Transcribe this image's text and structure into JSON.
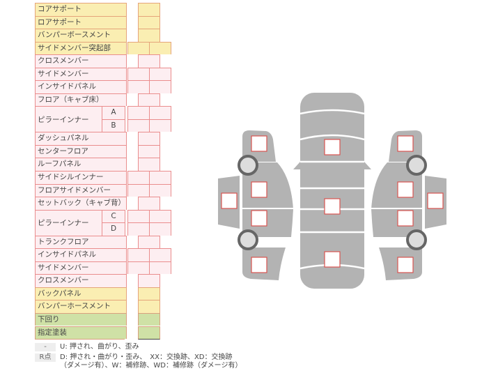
{
  "rows": [
    {
      "label": "コアサポート",
      "color": "yellow",
      "cells": 1
    },
    {
      "label": "ロアサポート",
      "color": "yellow",
      "cells": 1
    },
    {
      "label": "バンパーボースメント",
      "color": "yellow",
      "cells": 1
    },
    {
      "label": "サイドメンバー突起部",
      "color": "yellow",
      "cells": 2
    },
    {
      "label": "クロスメンバー",
      "color": "pink",
      "cells": 1
    },
    {
      "label": "サイドメンバー",
      "color": "pink",
      "cells": 2
    },
    {
      "label": "インサイドパネル",
      "color": "pink",
      "cells": 2
    },
    {
      "label": "フロア（キャブ床）",
      "color": "pink",
      "cells": 1
    },
    {
      "label": "ピラーインナー",
      "sub": "A",
      "color": "pink",
      "cells": 2
    },
    {
      "label": "",
      "sub": "B",
      "color": "pink",
      "cells": 2
    },
    {
      "label": "ダッシュパネル",
      "color": "pink",
      "cells": 1
    },
    {
      "label": "センターフロア",
      "color": "pink",
      "cells": 1
    },
    {
      "label": "ルーフパネル",
      "color": "pink",
      "cells": 1
    },
    {
      "label": "サイドシルインナー",
      "color": "pink",
      "cells": 2
    },
    {
      "label": "フロアサイドメンバー",
      "color": "pink",
      "cells": 2
    },
    {
      "label": "セットバック（キャブ背）",
      "color": "pink",
      "cells": 1
    },
    {
      "label": "ピラーインナー",
      "sub": "C",
      "color": "pink",
      "cells": 2
    },
    {
      "label": "",
      "sub": "D",
      "color": "pink",
      "cells": 2
    },
    {
      "label": "トランクフロア",
      "color": "pink",
      "cells": 1
    },
    {
      "label": "インサイドパネル",
      "color": "pink",
      "cells": 2
    },
    {
      "label": "サイドメンバー",
      "color": "pink",
      "cells": 2
    },
    {
      "label": "クロスメンバー",
      "color": "pink",
      "cells": 1
    },
    {
      "label": "バックパネル",
      "color": "yellow",
      "cells": 1
    },
    {
      "label": "バンパーホースメント",
      "color": "yellow",
      "cells": 1
    },
    {
      "label": "下回り",
      "color": "green",
      "cells": 1
    },
    {
      "label": "指定塗装",
      "color": "green",
      "cells": 1
    }
  ],
  "legend": [
    {
      "key": "-",
      "lines": [
        "U: 押され、曲がり、歪み"
      ]
    },
    {
      "key": "R点",
      "lines": [
        "D: 押され・曲がり・歪み、　XX：交換跡、XD：交換跡",
        "（ダメージ有）、W：補修跡、WD：補修跡（ダメージ有）"
      ]
    }
  ],
  "colors": {
    "yellow": "#faeeb2",
    "pink": "#fdeef1",
    "green": "#cfe1a6",
    "body": "#b3b3b3",
    "marker": "#d9534f"
  }
}
